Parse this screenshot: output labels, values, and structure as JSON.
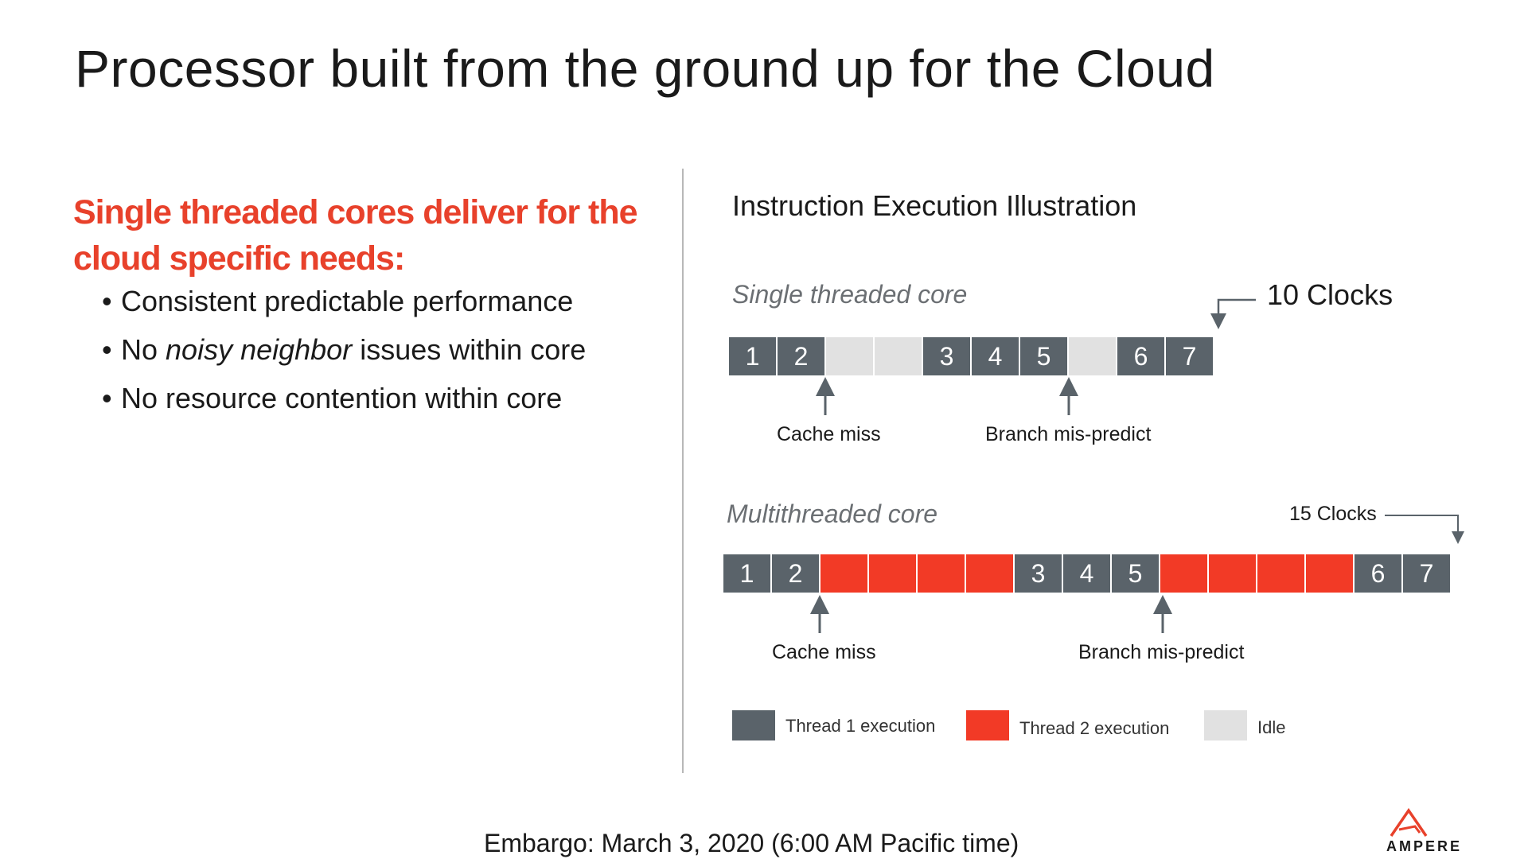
{
  "title": "Processor built from the ground up for the Cloud",
  "left": {
    "headline": "Single threaded cores deliver for the cloud specific needs:",
    "bullets": [
      {
        "before": "Consistent predictable performance",
        "em": "",
        "after": ""
      },
      {
        "before": "No ",
        "em": "noisy neighbor",
        "after": " issues within core"
      },
      {
        "before": "No resource contention within core",
        "em": "",
        "after": ""
      }
    ]
  },
  "diagram": {
    "title": "Instruction Execution Illustration",
    "single": {
      "label": "Single threaded core",
      "clocks": "10 Clocks",
      "cells": [
        {
          "kind": "t1",
          "text": "1"
        },
        {
          "kind": "t1",
          "text": "2"
        },
        {
          "kind": "idle",
          "text": ""
        },
        {
          "kind": "idle",
          "text": ""
        },
        {
          "kind": "t1",
          "text": "3"
        },
        {
          "kind": "t1",
          "text": "4"
        },
        {
          "kind": "t1",
          "text": "5"
        },
        {
          "kind": "idle",
          "text": ""
        },
        {
          "kind": "t1",
          "text": "6"
        },
        {
          "kind": "t1",
          "text": "7"
        }
      ],
      "callouts": [
        "Cache miss",
        "Branch mis-predict"
      ]
    },
    "multi": {
      "label": "Multithreaded core",
      "clocks": "15 Clocks",
      "cells": [
        {
          "kind": "t1",
          "text": "1"
        },
        {
          "kind": "t1",
          "text": "2"
        },
        {
          "kind": "t2",
          "text": ""
        },
        {
          "kind": "t2",
          "text": ""
        },
        {
          "kind": "t2",
          "text": ""
        },
        {
          "kind": "t2",
          "text": ""
        },
        {
          "kind": "t1",
          "text": "3"
        },
        {
          "kind": "t1",
          "text": "4"
        },
        {
          "kind": "t1",
          "text": "5"
        },
        {
          "kind": "t2",
          "text": ""
        },
        {
          "kind": "t2",
          "text": ""
        },
        {
          "kind": "t2",
          "text": ""
        },
        {
          "kind": "t2",
          "text": ""
        },
        {
          "kind": "t1",
          "text": "6"
        },
        {
          "kind": "t1",
          "text": "7"
        }
      ],
      "callouts": [
        "Cache miss",
        "Branch mis-predict"
      ]
    },
    "legend": [
      "Thread 1 execution",
      "Thread 2 execution",
      "Idle"
    ]
  },
  "colors": {
    "thread1": "#5a636a",
    "thread2": "#f23a26",
    "idle": "#e1e1e1",
    "accent": "#e8412b"
  },
  "footer": "Embargo: March 3, 2020 (6:00 AM Pacific time)",
  "logo": {
    "text": "AMPERE",
    "icon": "ampere-logo-icon"
  }
}
